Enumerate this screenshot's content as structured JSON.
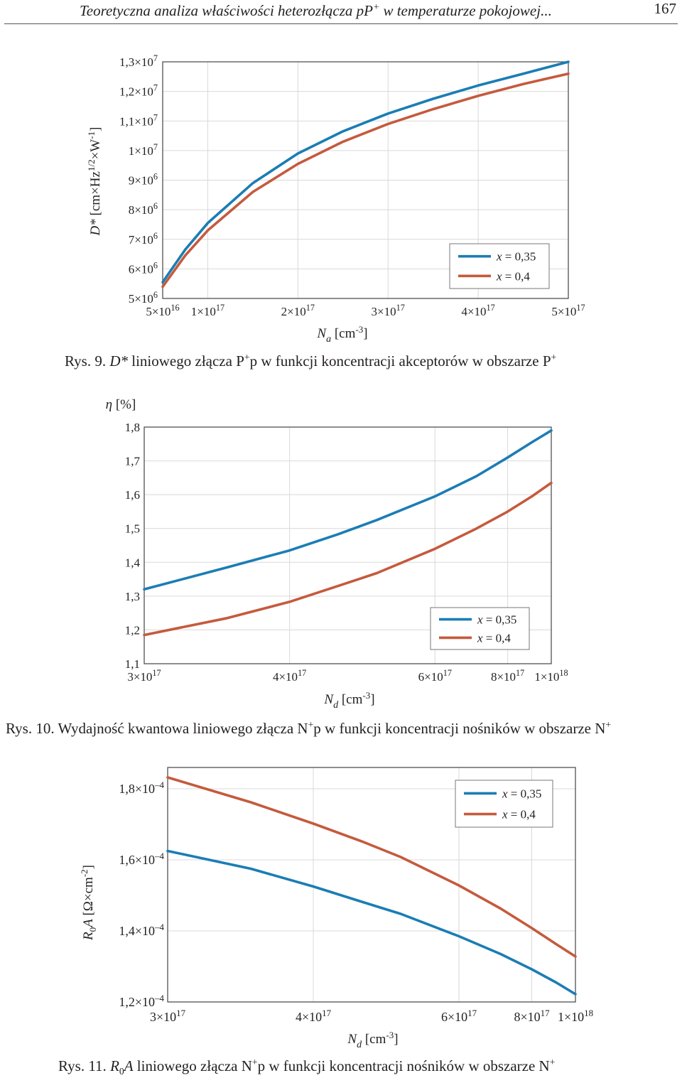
{
  "header": {
    "running_title_prefix": "Teoretyczna analiza właściwości heterozłącza pP",
    "running_title_sup": "+",
    "running_title_suffix": " w temperaturze pokojowej...",
    "page_number": "167"
  },
  "colors": {
    "series_1": "#1b7db4",
    "series_2": "#c55a3d",
    "grid": "#d9d9d9",
    "frame": "#444444"
  },
  "chart_data": [
    {
      "type": "line",
      "x_scale": "linear",
      "y_scale": "linear",
      "grid": true,
      "legend_position": "bottom-right",
      "xlim": [
        50000000000000000,
        500000000000000000
      ],
      "ylim": [
        5000000,
        13000000
      ],
      "xticks": [
        {
          "value": 50000000000000000,
          "mant": "5",
          "exp": "16"
        },
        {
          "value": 100000000000000000,
          "mant": "1",
          "exp": "17"
        },
        {
          "value": 200000000000000000,
          "mant": "2",
          "exp": "17"
        },
        {
          "value": 300000000000000000,
          "mant": "3",
          "exp": "17"
        },
        {
          "value": 400000000000000000,
          "mant": "4",
          "exp": "17"
        },
        {
          "value": 500000000000000000,
          "mant": "5",
          "exp": "17"
        }
      ],
      "yticks": [
        {
          "value": 5000000,
          "mant": "5",
          "exp": "6"
        },
        {
          "value": 6000000,
          "mant": "6",
          "exp": "6"
        },
        {
          "value": 7000000,
          "mant": "7",
          "exp": "6"
        },
        {
          "value": 8000000,
          "mant": "8",
          "exp": "6"
        },
        {
          "value": 9000000,
          "mant": "9",
          "exp": "6"
        },
        {
          "value": 10000000,
          "mant": "1",
          "exp": "7"
        },
        {
          "value": 11000000,
          "mant": "1,1",
          "exp": "7"
        },
        {
          "value": 12000000,
          "mant": "1,2",
          "exp": "7"
        },
        {
          "value": 13000000,
          "mant": "1,3",
          "exp": "7"
        }
      ],
      "xlabel": "N_a [cm^-3]",
      "ylabel": "D* [cm×Hz^1/2×W^-1]",
      "series": [
        {
          "name": "x = 0,35",
          "x": [
            50000000000000000,
            75000000000000000,
            100000000000000000,
            150000000000000000,
            200000000000000000,
            250000000000000000,
            300000000000000000,
            350000000000000000,
            400000000000000000,
            450000000000000000,
            500000000000000000
          ],
          "values": [
            5550000,
            6650000,
            7550000,
            8900000,
            9900000,
            10650000,
            11250000,
            11750000,
            12200000,
            12600000,
            13000000
          ]
        },
        {
          "name": "x = 0,4",
          "x": [
            50000000000000000,
            75000000000000000,
            100000000000000000,
            150000000000000000,
            200000000000000000,
            250000000000000000,
            300000000000000000,
            350000000000000000,
            400000000000000000,
            450000000000000000,
            500000000000000000
          ],
          "values": [
            5400000,
            6450000,
            7300000,
            8600000,
            9550000,
            10300000,
            10900000,
            11400000,
            11850000,
            12250000,
            12600000
          ]
        }
      ]
    },
    {
      "type": "line",
      "x_scale": "reciprocal",
      "y_scale": "linear",
      "grid": true,
      "legend_position": "bottom-right",
      "xlim": [
        300000000000000000,
        1000000000000000000
      ],
      "ylim": [
        1.1,
        1.8
      ],
      "xticks": [
        {
          "value": 300000000000000000,
          "mant": "3",
          "exp": "17"
        },
        {
          "value": 400000000000000000,
          "mant": "4",
          "exp": "17"
        },
        {
          "value": 600000000000000000,
          "mant": "6",
          "exp": "17"
        },
        {
          "value": 800000000000000000,
          "mant": "8",
          "exp": "17"
        },
        {
          "value": 1000000000000000000,
          "mant": "1",
          "exp": "18"
        }
      ],
      "yticks": [
        {
          "value": 1.1,
          "label": "1,1"
        },
        {
          "value": 1.2,
          "label": "1,2"
        },
        {
          "value": 1.3,
          "label": "1,3"
        },
        {
          "value": 1.4,
          "label": "1,4"
        },
        {
          "value": 1.5,
          "label": "1,5"
        },
        {
          "value": 1.6,
          "label": "1,6"
        },
        {
          "value": 1.7,
          "label": "1,7"
        },
        {
          "value": 1.8,
          "label": "1,8"
        }
      ],
      "xlabel": "N_d [cm^-3]",
      "ylabel": "η [%]",
      "series": [
        {
          "name": "x = 0,35",
          "x": [
            300000000000000000,
            350000000000000000,
            400000000000000000,
            450000000000000000,
            500000000000000000,
            600000000000000000,
            700000000000000000,
            800000000000000000,
            900000000000000000,
            1000000000000000000
          ],
          "values": [
            1.32,
            1.385,
            1.435,
            1.483,
            1.525,
            1.595,
            1.655,
            1.71,
            1.755,
            1.79
          ]
        },
        {
          "name": "x = 0,4",
          "x": [
            300000000000000000,
            350000000000000000,
            400000000000000000,
            450000000000000000,
            500000000000000000,
            600000000000000000,
            700000000000000000,
            800000000000000000,
            900000000000000000,
            1000000000000000000
          ],
          "values": [
            1.185,
            1.235,
            1.283,
            1.33,
            1.368,
            1.44,
            1.5,
            1.55,
            1.595,
            1.635
          ]
        }
      ]
    },
    {
      "type": "line",
      "x_scale": "reciprocal",
      "y_scale": "linear",
      "grid": true,
      "legend_position": "top-right",
      "xlim": [
        300000000000000000,
        1000000000000000000
      ],
      "ylim": [
        0.00012,
        0.000186
      ],
      "xticks": [
        {
          "value": 300000000000000000,
          "mant": "3",
          "exp": "17"
        },
        {
          "value": 400000000000000000,
          "mant": "4",
          "exp": "17"
        },
        {
          "value": 600000000000000000,
          "mant": "6",
          "exp": "17"
        },
        {
          "value": 800000000000000000,
          "mant": "8",
          "exp": "17"
        },
        {
          "value": 1000000000000000000,
          "mant": "1",
          "exp": "18"
        }
      ],
      "yticks": [
        {
          "value": 0.00012,
          "mant": "1,2",
          "exp": "–4"
        },
        {
          "value": 0.00014,
          "mant": "1,4",
          "exp": "–4"
        },
        {
          "value": 0.00016,
          "mant": "1,6",
          "exp": "–4"
        },
        {
          "value": 0.00018,
          "mant": "1,8",
          "exp": "–4"
        }
      ],
      "xlabel": "N_d [cm^-3]",
      "ylabel": "R_0A [Ω×cm^2]",
      "series": [
        {
          "name": "x = 0,35",
          "x": [
            300000000000000000,
            350000000000000000,
            400000000000000000,
            450000000000000000,
            500000000000000000,
            600000000000000000,
            700000000000000000,
            800000000000000000,
            900000000000000000,
            1000000000000000000
          ],
          "values": [
            0.0001625,
            0.0001575,
            0.0001525,
            0.0001482,
            0.0001448,
            0.0001385,
            0.0001335,
            0.0001292,
            0.0001255,
            0.0001222
          ]
        },
        {
          "name": "x = 0,4",
          "x": [
            300000000000000000,
            350000000000000000,
            400000000000000000,
            450000000000000000,
            500000000000000000,
            600000000000000000,
            700000000000000000,
            800000000000000000,
            900000000000000000,
            1000000000000000000
          ],
          "values": [
            0.0001832,
            0.0001762,
            0.0001702,
            0.0001652,
            0.0001608,
            0.0001528,
            0.0001463,
            0.0001408,
            0.0001363,
            0.0001328
          ]
        }
      ]
    }
  ],
  "captions": {
    "fig9": {
      "pre": "Rys. 9. ",
      "ital": "D*",
      "mid1": " liniowego złącza P",
      "sup1": "+",
      "mid2": "p w funkcji koncentracji akceptorów w obszarze P",
      "sup2": "+"
    },
    "fig10": {
      "pre": "Rys. 10. Wydajność kwantowa liniowego złącza N",
      "sup1": "+",
      "mid": "p w funkcji koncentracji nośników w obszarze N",
      "sup2": "+"
    },
    "fig11": {
      "pre": "Rys. 11. ",
      "ital": "R",
      "sub": "0",
      "ital2": "A",
      "mid1": " liniowego złącza N",
      "sup1": "+",
      "mid2": "p w funkcji koncentracji nośników w obszarze N",
      "sup2": "+"
    }
  }
}
